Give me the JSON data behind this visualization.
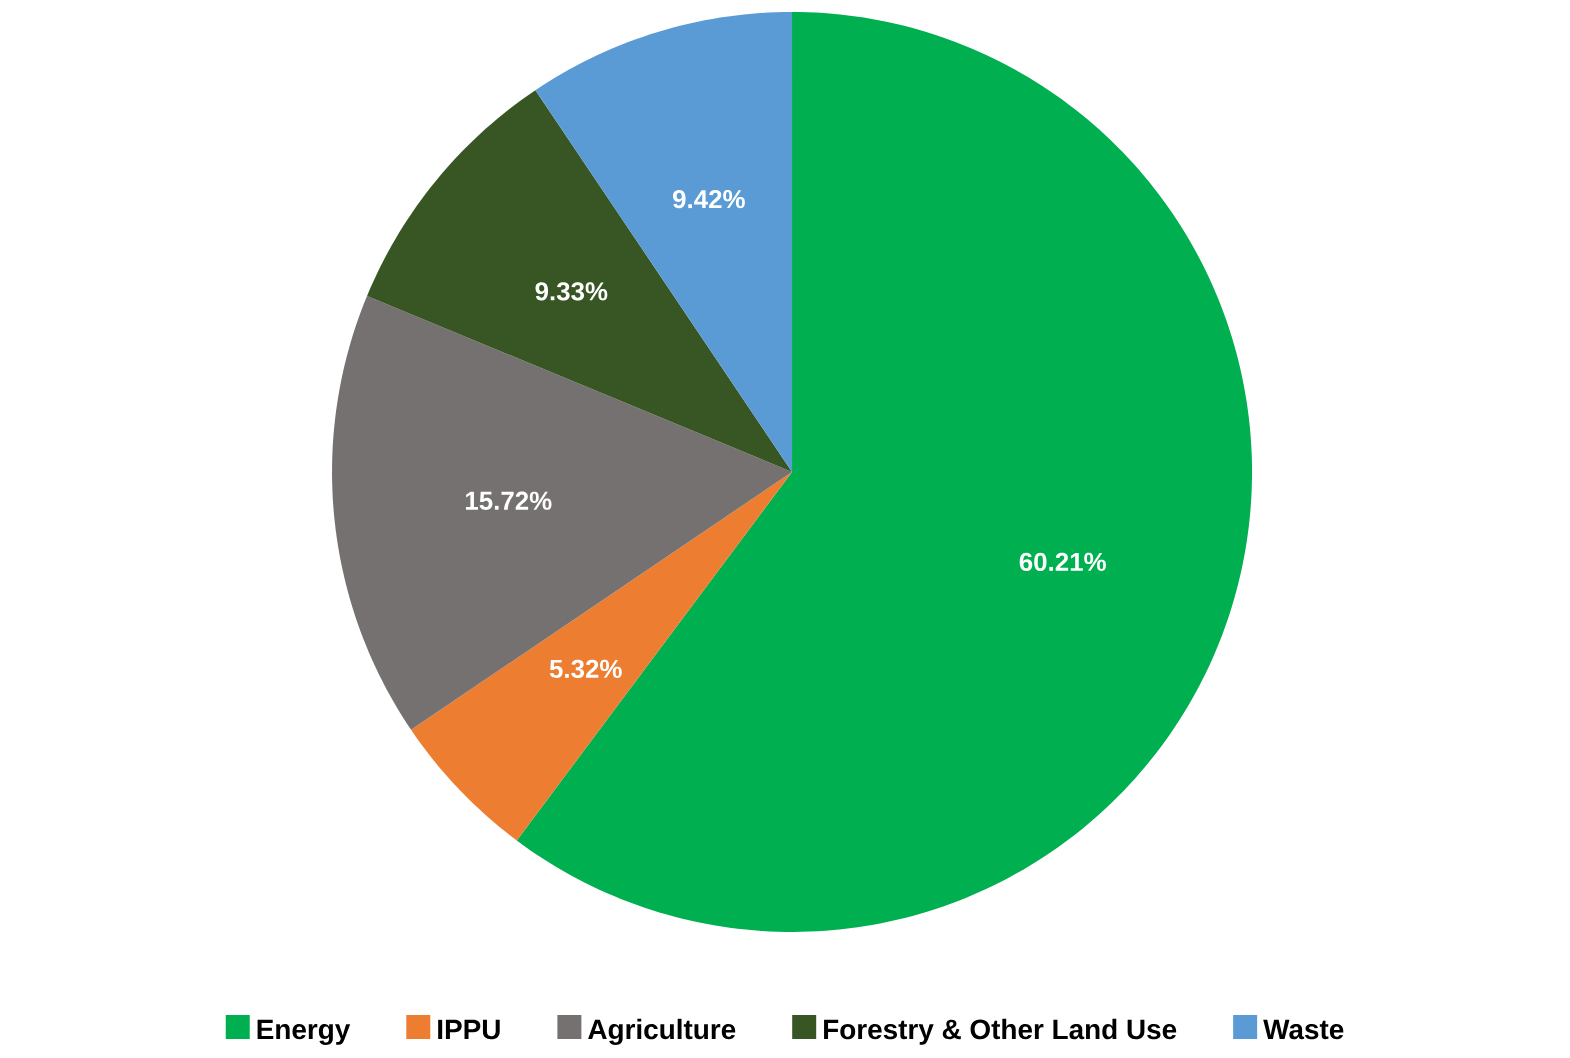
{
  "chart_data": {
    "type": "pie",
    "categories": [
      "Energy",
      "IPPU",
      "Agriculture",
      "Forestry & Other Land Use",
      "Waste"
    ],
    "values": [
      60.21,
      5.32,
      15.72,
      9.33,
      9.42
    ],
    "value_labels": [
      "60.21%",
      "5.32%",
      "15.72%",
      "9.33%",
      "9.42%"
    ],
    "colors": [
      "#00b050",
      "#ed7d31",
      "#767171",
      "#375623",
      "#5b9bd5"
    ],
    "legend": "bottom"
  }
}
